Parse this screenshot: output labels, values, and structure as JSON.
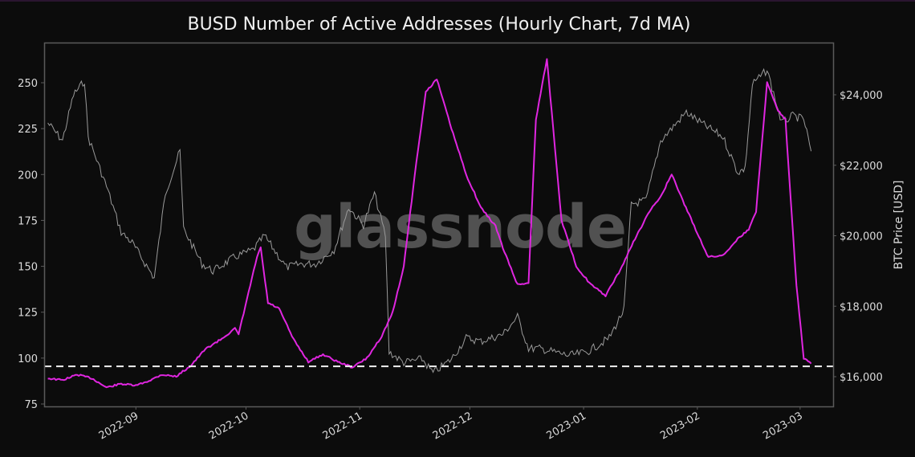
{
  "title": "BUSD Number of Active Addresses (Hourly Chart, 7d MA)",
  "watermark": "glassnode",
  "chart_data": {
    "type": "line",
    "title": "BUSD Number of Active Addresses (Hourly Chart, 7d MA)",
    "xlabel": "",
    "ylabel_left": "",
    "ylabel_right": "BTC Price [USD]",
    "x_ticks": [
      "2022-09",
      "2022-10",
      "2022-11",
      "2022-12",
      "2023-01",
      "2023-02",
      "2023-03"
    ],
    "y_left_ticks": [
      75,
      100,
      125,
      150,
      175,
      200,
      225,
      250
    ],
    "y_left_range": [
      73,
      270
    ],
    "y_right_ticks": [
      "$16,000",
      "$18,000",
      "$20,000",
      "$22,000",
      "$24,000"
    ],
    "y_right_range": [
      15200,
      25500
    ],
    "grid": false,
    "reference_line": {
      "value": 95.5,
      "style": "dashed",
      "color": "#ffffff"
    },
    "series": [
      {
        "name": "BUSD Active Addresses (7d MA)",
        "axis": "left",
        "color": "#e026e0",
        "x": [
          "2022-08-08",
          "2022-08-12",
          "2022-08-16",
          "2022-08-20",
          "2022-08-24",
          "2022-08-28",
          "2022-09-01",
          "2022-09-05",
          "2022-09-08",
          "2022-09-12",
          "2022-09-16",
          "2022-09-20",
          "2022-09-24",
          "2022-09-28",
          "2022-09-29",
          "2022-10-04",
          "2022-10-05",
          "2022-10-07",
          "2022-10-10",
          "2022-10-14",
          "2022-10-18",
          "2022-10-22",
          "2022-10-26",
          "2022-10-30",
          "2022-11-03",
          "2022-11-07",
          "2022-11-10",
          "2022-11-13",
          "2022-11-16",
          "2022-11-19",
          "2022-11-22",
          "2022-11-26",
          "2022-11-30",
          "2022-12-04",
          "2022-12-08",
          "2022-12-10",
          "2022-12-14",
          "2022-12-17",
          "2022-12-19",
          "2022-12-22",
          "2022-12-26",
          "2022-12-30",
          "2023-01-03",
          "2023-01-07",
          "2023-01-11",
          "2023-01-15",
          "2023-01-19",
          "2023-01-22",
          "2023-01-25",
          "2023-01-28",
          "2023-02-01",
          "2023-02-04",
          "2023-02-08",
          "2023-02-12",
          "2023-02-15",
          "2023-02-17",
          "2023-02-20",
          "2023-02-23",
          "2023-02-25",
          "2023-02-28",
          "2023-03-02",
          "2023-03-04"
        ],
        "values": [
          89,
          88,
          91,
          89,
          84,
          86,
          85,
          88,
          91,
          90,
          96,
          105,
          110,
          116,
          113,
          155,
          160,
          130,
          127,
          110,
          98,
          102,
          98,
          95,
          100,
          112,
          125,
          150,
          200,
          245,
          252,
          225,
          200,
          182,
          172,
          160,
          140,
          141,
          230,
          263,
          175,
          150,
          140,
          134,
          148,
          165,
          180,
          188,
          200,
          186,
          168,
          155,
          156,
          165,
          170,
          180,
          250,
          235,
          230,
          140,
          100,
          97
        ]
      },
      {
        "name": "BTC Price [USD]",
        "axis": "right",
        "color": "#9a9a9a",
        "x": [
          "2022-08-08",
          "2022-08-12",
          "2022-08-15",
          "2022-08-18",
          "2022-08-19",
          "2022-08-24",
          "2022-08-28",
          "2022-08-31",
          "2022-09-06",
          "2022-09-09",
          "2022-09-13",
          "2022-09-14",
          "2022-09-19",
          "2022-09-22",
          "2022-09-28",
          "2022-10-03",
          "2022-10-06",
          "2022-10-12",
          "2022-10-16",
          "2022-10-20",
          "2022-10-25",
          "2022-10-29",
          "2022-11-02",
          "2022-11-05",
          "2022-11-08",
          "2022-11-09",
          "2022-11-13",
          "2022-11-18",
          "2022-11-21",
          "2022-11-26",
          "2022-11-30",
          "2022-12-04",
          "2022-12-10",
          "2022-12-14",
          "2022-12-17",
          "2022-12-20",
          "2022-12-28",
          "2023-01-02",
          "2023-01-08",
          "2023-01-12",
          "2023-01-14",
          "2023-01-18",
          "2023-01-22",
          "2023-01-29",
          "2023-02-02",
          "2023-02-08",
          "2023-02-12",
          "2023-02-14",
          "2023-02-16",
          "2023-02-20",
          "2023-02-24",
          "2023-02-27",
          "2023-03-02",
          "2023-03-04"
        ],
        "values": [
          23200,
          22700,
          24000,
          24400,
          22800,
          21400,
          20100,
          19800,
          18800,
          21200,
          22400,
          20200,
          19200,
          19000,
          19400,
          19600,
          20000,
          19100,
          19200,
          19200,
          19600,
          20800,
          20300,
          21200,
          20000,
          16700,
          16400,
          16500,
          16100,
          16500,
          17100,
          17000,
          17200,
          17700,
          16800,
          16800,
          16600,
          16700,
          17100,
          17900,
          20900,
          21000,
          22700,
          23500,
          23200,
          22800,
          21800,
          21900,
          24300,
          24700,
          23200,
          23400,
          23300,
          22400
        ]
      }
    ]
  },
  "axes": {
    "left_ticks": [
      "75",
      "100",
      "125",
      "150",
      "175",
      "200",
      "225",
      "250"
    ],
    "right_ticks": [
      "$16,000",
      "$18,000",
      "$20,000",
      "$22,000",
      "$24,000"
    ],
    "right_label": "BTC Price [USD]",
    "x_ticks": [
      "2022-09",
      "2022-10",
      "2022-11",
      "2022-12",
      "2023-01",
      "2023-02",
      "2023-03"
    ]
  },
  "colors": {
    "background": "#0c0c0c",
    "addresses_line": "#e026e0",
    "price_line": "#9a9a9a",
    "reference_line": "#f0f0f0",
    "frame": "#5a5a5a"
  }
}
